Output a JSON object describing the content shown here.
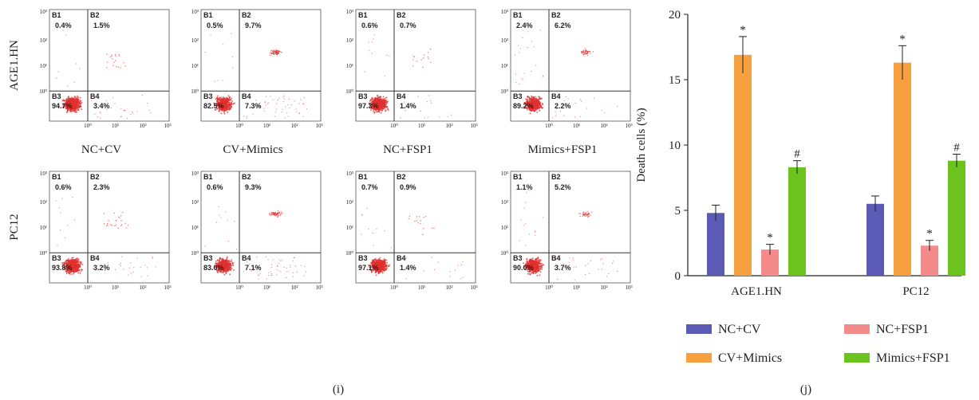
{
  "panel_i": {
    "label": "(i)",
    "row_labels": [
      "AGE1.HN",
      "PC12"
    ],
    "col_labels": [
      "NC+CV",
      "CV+Mimics",
      "NC+FSP1",
      "Mimics+FSP1"
    ],
    "quadrant_names": [
      "B1",
      "B2",
      "B3",
      "B4"
    ],
    "tick_labels": [
      "10⁰",
      "10¹",
      "10²",
      "10³"
    ],
    "plots": [
      [
        {
          "B1": "0.4%",
          "B2": "1.5%",
          "B3": "94.7%",
          "B4": "3.4%"
        },
        {
          "B1": "0.5%",
          "B2": "9.7%",
          "B3": "82.5%",
          "B4": "7.3%"
        },
        {
          "B1": "0.6%",
          "B2": "0.7%",
          "B3": "97.3%",
          "B4": "1.4%"
        },
        {
          "B1": "2.4%",
          "B2": "6.2%",
          "B3": "89.2%",
          "B4": "2.2%"
        }
      ],
      [
        {
          "B1": "0.6%",
          "B2": "2.3%",
          "B3": "93.8%",
          "B4": "3.2%"
        },
        {
          "B1": "0.6%",
          "B2": "9.3%",
          "B3": "83.0%",
          "B4": "7.1%"
        },
        {
          "B1": "0.7%",
          "B2": "0.9%",
          "B3": "97.1%",
          "B4": "1.4%"
        },
        {
          "B1": "1.1%",
          "B2": "5.2%",
          "B3": "90.0%",
          "B4": "3.7%"
        }
      ]
    ],
    "dot_color": "#e03030"
  },
  "panel_j": {
    "label": "(j)"
  },
  "chart_data": {
    "type": "bar",
    "title": "",
    "xlabel": "",
    "ylabel": "Death cells (%)",
    "ylim": [
      0,
      20
    ],
    "yticks": [
      0,
      5,
      10,
      15,
      20
    ],
    "categories": [
      "AGE1.HN",
      "PC12"
    ],
    "series": [
      {
        "name": "NC+CV",
        "color": "#5b5bb5",
        "values": [
          4.8,
          5.5
        ],
        "errors": [
          0.6,
          0.6
        ],
        "marks": [
          "",
          ""
        ]
      },
      {
        "name": "CV+Mimics",
        "color": "#f7a040",
        "values": [
          16.9,
          16.3
        ],
        "errors": [
          1.4,
          1.3
        ],
        "marks": [
          "*",
          "*"
        ]
      },
      {
        "name": "NC+FSP1",
        "color": "#f58a8a",
        "values": [
          2.0,
          2.3
        ],
        "errors": [
          0.4,
          0.4
        ],
        "marks": [
          "*",
          "*"
        ]
      },
      {
        "name": "Mimics+FSP1",
        "color": "#6cc31e",
        "values": [
          8.3,
          8.8
        ],
        "errors": [
          0.5,
          0.5
        ],
        "marks": [
          "#",
          "#"
        ]
      }
    ],
    "legend_position": "bottom"
  }
}
